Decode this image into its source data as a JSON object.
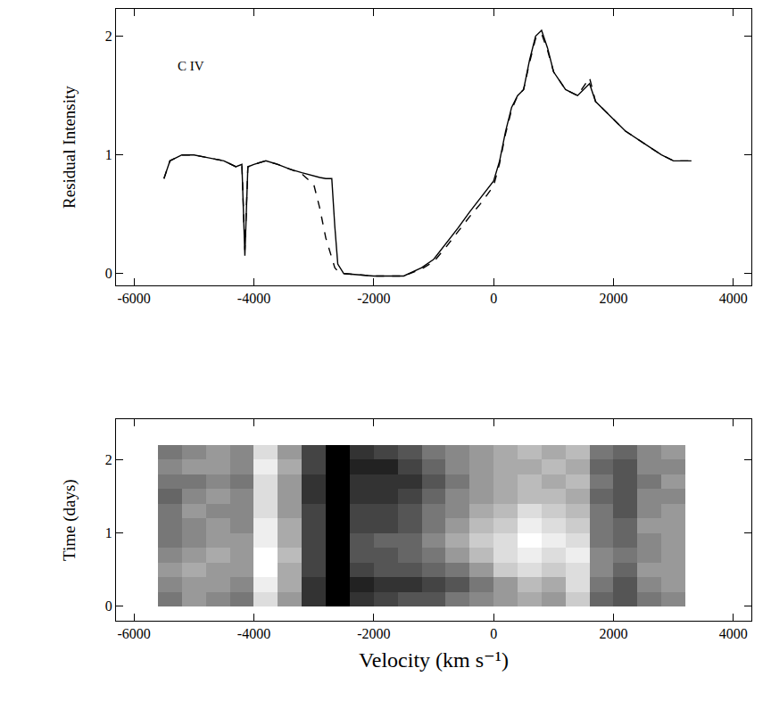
{
  "chart_data": [
    {
      "type": "line",
      "y_label": "Residual Intensity",
      "annotations": [
        {
          "text": "C IV",
          "x": -5300,
          "y": 1.75
        }
      ],
      "x": [
        -5500,
        -5400,
        -5200,
        -5000,
        -4800,
        -4500,
        -4300,
        -4200,
        -4150,
        -4100,
        -4000,
        -3800,
        -3600,
        -3400,
        -3200,
        -3000,
        -2900,
        -2800,
        -2700,
        -2650,
        -2600,
        -2500,
        -2000,
        -1500,
        -1200,
        -1000,
        -800,
        -600,
        -400,
        -200,
        0,
        100,
        200,
        300,
        400,
        500,
        600,
        700,
        800,
        900,
        1000,
        1200,
        1400,
        1600,
        1700,
        2000,
        2200,
        2500,
        2800,
        3000,
        3300
      ],
      "series": [
        {
          "color": "#000000",
          "line_style": "solid",
          "values": [
            0.8,
            0.95,
            1.0,
            1.0,
            0.98,
            0.95,
            0.9,
            0.92,
            0.15,
            0.9,
            0.92,
            0.95,
            0.92,
            0.88,
            0.85,
            0.82,
            0.81,
            0.8,
            0.8,
            0.4,
            0.08,
            0.0,
            -0.02,
            -0.02,
            0.05,
            0.12,
            0.25,
            0.38,
            0.52,
            0.65,
            0.78,
            0.95,
            1.2,
            1.4,
            1.5,
            1.55,
            1.8,
            2.0,
            2.05,
            1.9,
            1.7,
            1.55,
            1.5,
            1.6,
            1.45,
            1.3,
            1.2,
            1.1,
            1.0,
            0.95,
            0.95
          ]
        },
        {
          "color": "#000000",
          "line_style": "dashed",
          "values": [
            0.8,
            0.95,
            1.0,
            1.0,
            0.98,
            0.95,
            0.9,
            0.92,
            0.2,
            0.9,
            0.92,
            0.95,
            0.92,
            0.88,
            0.84,
            0.75,
            0.55,
            0.3,
            0.12,
            0.05,
            0.02,
            0.0,
            -0.02,
            -0.02,
            0.04,
            0.1,
            0.22,
            0.35,
            0.48,
            0.6,
            0.74,
            0.93,
            1.18,
            1.38,
            1.5,
            1.55,
            1.78,
            1.98,
            2.02,
            1.88,
            1.7,
            1.55,
            1.5,
            1.65,
            1.45,
            1.3,
            1.2,
            1.1,
            1.0,
            0.95,
            0.95
          ]
        }
      ],
      "xlim": [
        -6300,
        4300
      ],
      "xticks": [
        -6000,
        -4000,
        -2000,
        0,
        2000,
        4000
      ],
      "ylim": [
        -0.1,
        2.23
      ],
      "yticks": [
        0,
        1,
        2
      ]
    },
    {
      "type": "heatmap",
      "x_label": "Velocity (km s⁻¹)",
      "y_label": "Time (days)",
      "x": [
        -5400,
        -5000,
        -4600,
        -4200,
        -3800,
        -3400,
        -3000,
        -2600,
        -2200,
        -1800,
        -1400,
        -1000,
        -600,
        -200,
        200,
        600,
        1000,
        1400,
        1800,
        2200,
        2600,
        3000
      ],
      "y": [
        0.1,
        0.3,
        0.5,
        0.7,
        0.9,
        1.1,
        1.3,
        1.5,
        1.7,
        1.9,
        2.1
      ],
      "z": [
        [
          0.6,
          0.5,
          0.55,
          0.6,
          0.3,
          0.5,
          0.8,
          0.95,
          0.8,
          0.75,
          0.7,
          0.7,
          0.6,
          0.55,
          0.5,
          0.45,
          0.5,
          0.35,
          0.65,
          0.7,
          0.6,
          0.55
        ],
        [
          0.55,
          0.5,
          0.5,
          0.55,
          0.25,
          0.45,
          0.8,
          0.95,
          0.85,
          0.8,
          0.8,
          0.75,
          0.7,
          0.6,
          0.5,
          0.4,
          0.45,
          0.3,
          0.6,
          0.7,
          0.55,
          0.5
        ],
        [
          0.5,
          0.45,
          0.5,
          0.5,
          0.2,
          0.45,
          0.75,
          0.95,
          0.75,
          0.7,
          0.7,
          0.65,
          0.6,
          0.5,
          0.35,
          0.3,
          0.35,
          0.3,
          0.55,
          0.65,
          0.5,
          0.5
        ],
        [
          0.55,
          0.5,
          0.45,
          0.5,
          0.2,
          0.4,
          0.75,
          0.95,
          0.7,
          0.7,
          0.65,
          0.6,
          0.5,
          0.4,
          0.3,
          0.25,
          0.3,
          0.25,
          0.55,
          0.6,
          0.55,
          0.5
        ],
        [
          0.6,
          0.55,
          0.5,
          0.5,
          0.25,
          0.45,
          0.75,
          0.95,
          0.7,
          0.65,
          0.65,
          0.55,
          0.45,
          0.35,
          0.3,
          0.2,
          0.25,
          0.3,
          0.6,
          0.65,
          0.55,
          0.5
        ],
        [
          0.6,
          0.55,
          0.5,
          0.55,
          0.25,
          0.45,
          0.75,
          0.95,
          0.75,
          0.75,
          0.7,
          0.6,
          0.5,
          0.4,
          0.35,
          0.25,
          0.3,
          0.35,
          0.6,
          0.65,
          0.5,
          0.5
        ],
        [
          0.6,
          0.5,
          0.55,
          0.55,
          0.3,
          0.5,
          0.75,
          0.95,
          0.75,
          0.75,
          0.7,
          0.6,
          0.55,
          0.45,
          0.4,
          0.3,
          0.35,
          0.4,
          0.6,
          0.7,
          0.55,
          0.5
        ],
        [
          0.65,
          0.55,
          0.5,
          0.55,
          0.3,
          0.5,
          0.8,
          0.95,
          0.8,
          0.8,
          0.75,
          0.65,
          0.55,
          0.5,
          0.45,
          0.4,
          0.4,
          0.45,
          0.65,
          0.7,
          0.55,
          0.55
        ],
        [
          0.6,
          0.6,
          0.55,
          0.6,
          0.3,
          0.5,
          0.8,
          0.95,
          0.8,
          0.8,
          0.8,
          0.7,
          0.6,
          0.5,
          0.45,
          0.4,
          0.45,
          0.4,
          0.6,
          0.7,
          0.6,
          0.5
        ],
        [
          0.55,
          0.5,
          0.5,
          0.55,
          0.25,
          0.45,
          0.75,
          0.95,
          0.85,
          0.85,
          0.75,
          0.65,
          0.55,
          0.5,
          0.45,
          0.45,
          0.4,
          0.45,
          0.65,
          0.7,
          0.55,
          0.55
        ],
        [
          0.6,
          0.55,
          0.5,
          0.55,
          0.3,
          0.5,
          0.75,
          0.95,
          0.8,
          0.75,
          0.7,
          0.6,
          0.55,
          0.5,
          0.45,
          0.4,
          0.45,
          0.4,
          0.6,
          0.65,
          0.55,
          0.5
        ]
      ],
      "xlim": [
        -6300,
        4300
      ],
      "xticks": [
        -6000,
        -4000,
        -2000,
        0,
        2000,
        4000
      ],
      "ylim": [
        -0.2,
        2.55
      ],
      "yticks": [
        0,
        1,
        2
      ]
    }
  ]
}
